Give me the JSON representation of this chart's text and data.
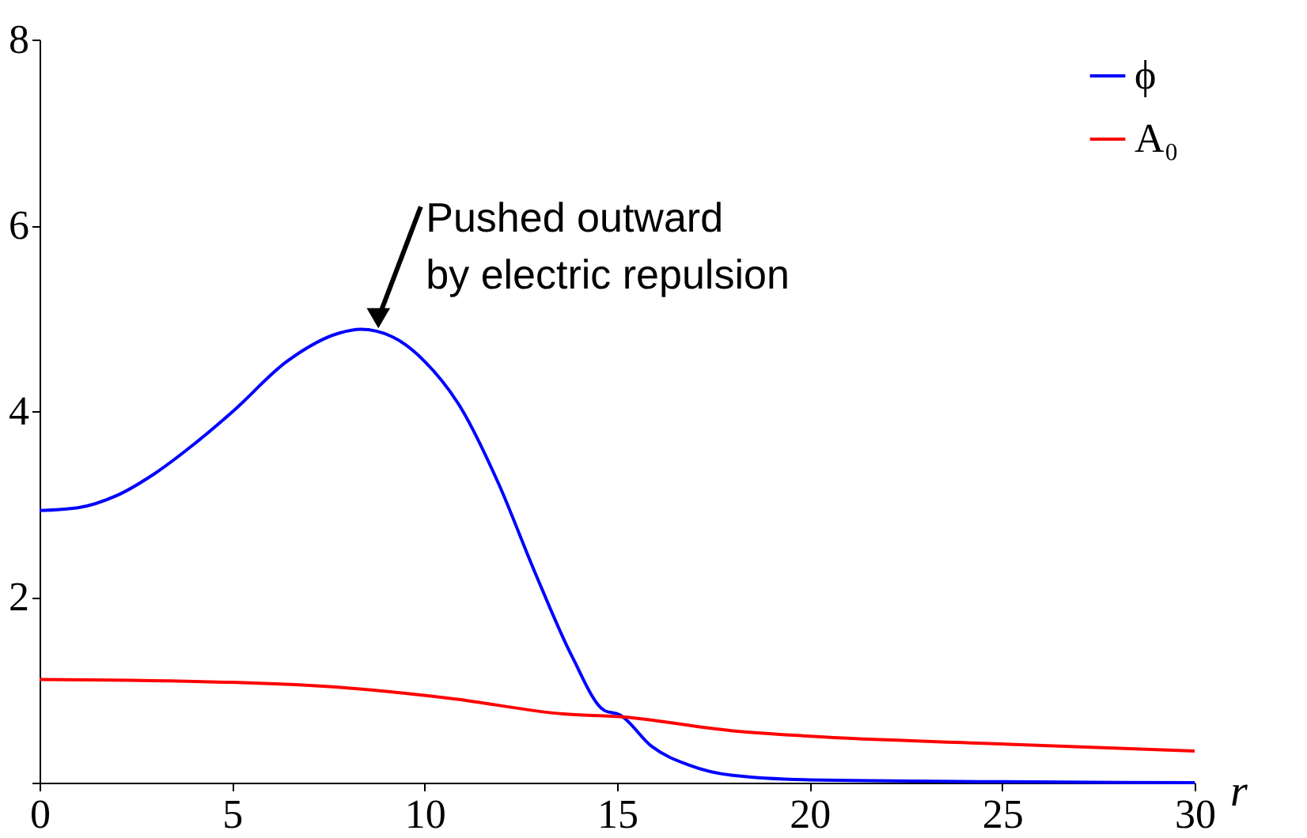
{
  "chart_data": {
    "type": "line",
    "xlabel": "r",
    "legend": "top right",
    "marker": "none",
    "line_style": "solid",
    "grid": false,
    "xlim": [
      0,
      30
    ],
    "ylim": [
      0,
      8
    ],
    "xticks": [
      0,
      5,
      10,
      15,
      20,
      25,
      30
    ],
    "yticks": [
      {
        "value": 0,
        "label": null
      },
      2,
      4,
      6,
      8
    ],
    "annotations": [
      {
        "text": "Pushed outward\nby electric repulsion",
        "x": 8.8,
        "y": 5.0
      }
    ],
    "series": [
      {
        "name": "ϕ",
        "color": "#0000ff",
        "x": [
          0,
          1,
          2,
          3,
          4,
          5.03,
          6.41,
          7.79,
          8.34,
          9.16,
          9.99,
          10.95,
          11.91,
          12.87,
          13.84,
          14.66,
          15.07,
          15.9,
          16.86,
          17.96,
          20,
          25,
          30
        ],
        "values": [
          2.93,
          2.96,
          3.09,
          3.33,
          3.64,
          4.0,
          4.53,
          4.84,
          4.88,
          4.8,
          4.54,
          4.03,
          3.23,
          2.26,
          1.35,
          0.78,
          0.73,
          0.39,
          0.19,
          0.08,
          0.03,
          0.01,
          0.0
        ]
      },
      {
        "name": "A₀",
        "color": "#ff0000",
        "x": [
          0,
          5,
          8,
          10.8,
          13.6,
          15.07,
          17.96,
          20,
          24.8,
          30
        ],
        "values": [
          1.11,
          1.08,
          1.02,
          0.9,
          0.74,
          0.71,
          0.56,
          0.5,
          0.42,
          0.34
        ]
      }
    ]
  }
}
